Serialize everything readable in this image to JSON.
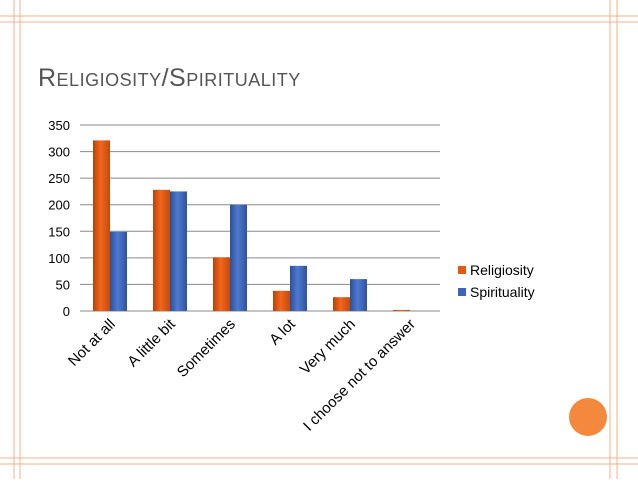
{
  "slide": {
    "title": "Religiosity/Spirituality",
    "accent_color": "#f4883c",
    "frame_color": "#f3b38a"
  },
  "chart_data": {
    "type": "bar",
    "title": "",
    "xlabel": "",
    "ylabel": "",
    "categories": [
      "Not at all",
      "A little bit",
      "Sometimes",
      "A lot",
      "Very much",
      "I choose not to answer"
    ],
    "series": [
      {
        "name": "Religiosity",
        "values": [
          321,
          228,
          101,
          38,
          26,
          2
        ],
        "color": "#e55a10"
      },
      {
        "name": "Spirituality",
        "values": [
          149,
          225,
          200,
          85,
          60,
          0
        ],
        "color": "#3e64b6"
      }
    ],
    "ylim": [
      0,
      350
    ],
    "yticks": [
      0,
      50,
      100,
      150,
      200,
      250,
      300,
      350
    ],
    "grid": true,
    "legend": "right"
  }
}
